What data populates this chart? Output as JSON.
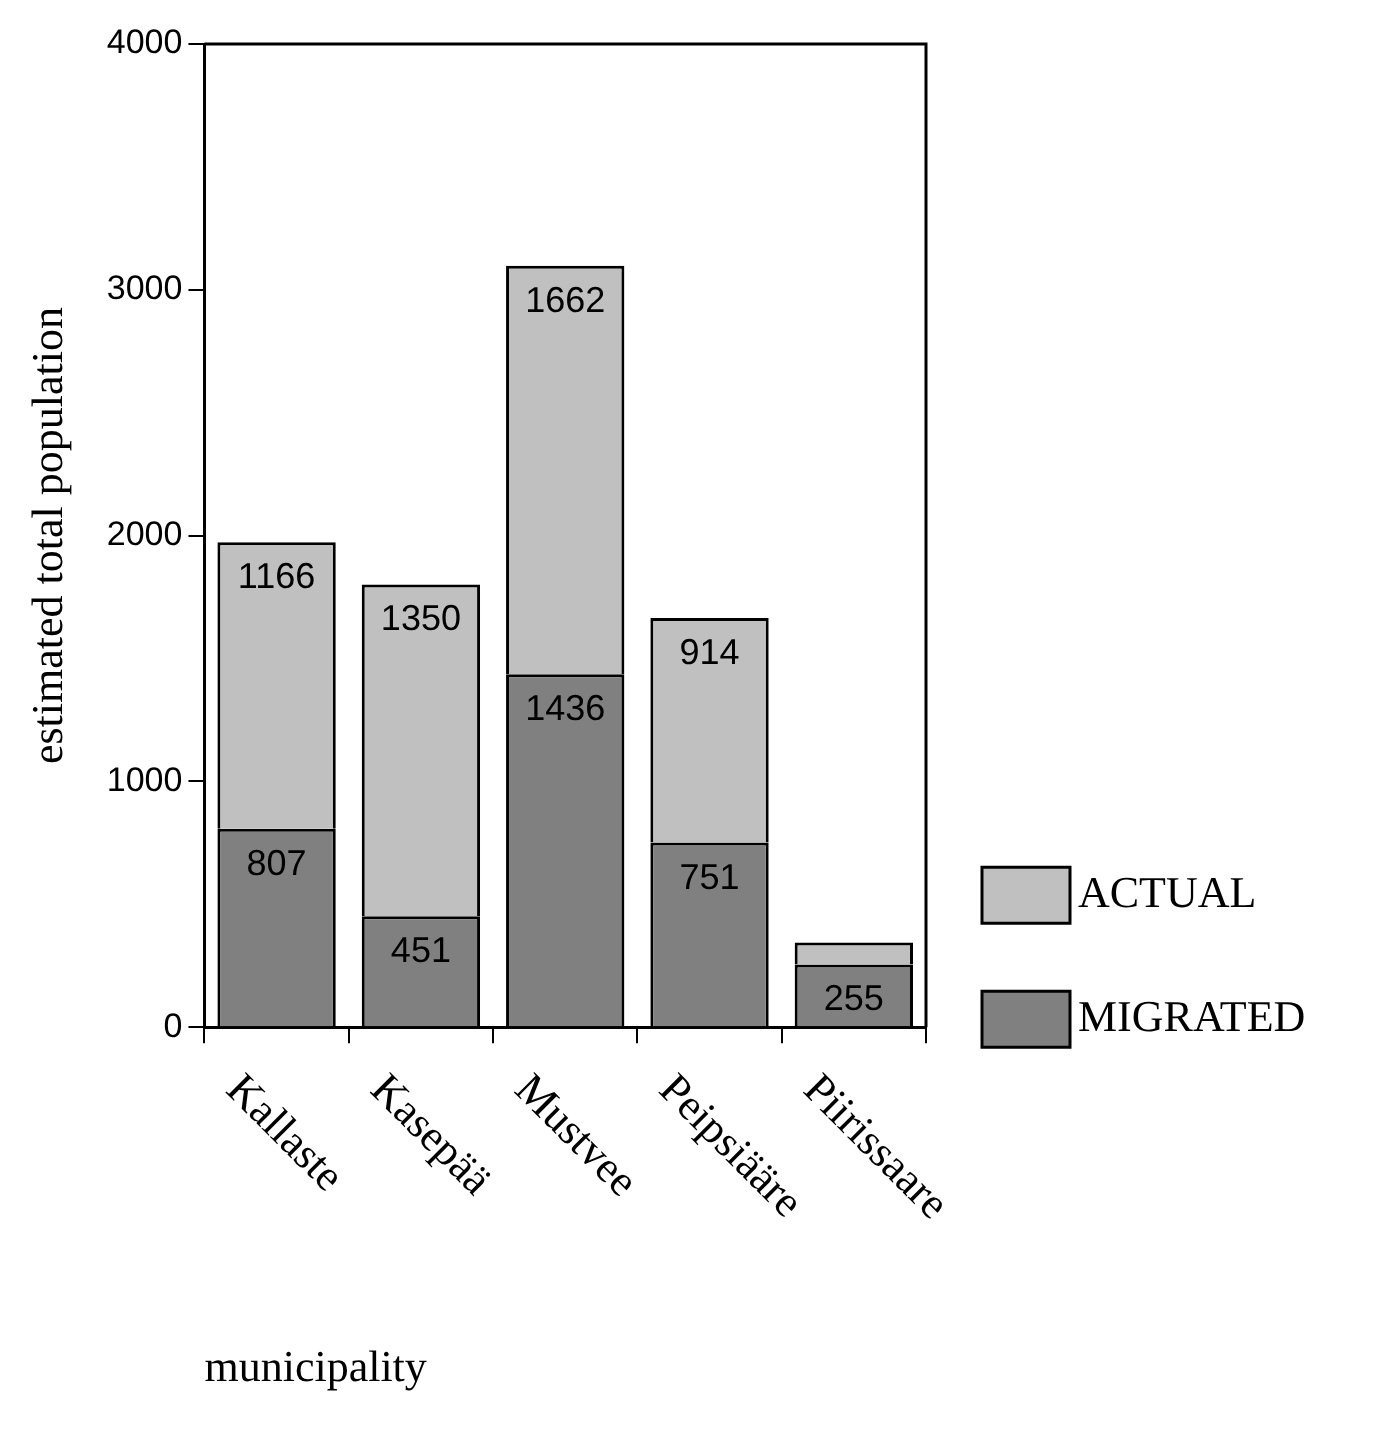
{
  "chart_data": {
    "type": "bar",
    "stacked": true,
    "categories": [
      "Kallaste",
      "Kasepää",
      "Mustvee",
      "Peipsiääre",
      "Piirissaare"
    ],
    "series": [
      {
        "name": "MIGRATED",
        "color": "#808080",
        "values": [
          807,
          451,
          1436,
          751,
          255
        ],
        "value_labels": [
          "807",
          "451",
          "1436",
          "751",
          "255"
        ]
      },
      {
        "name": "ACTUAL",
        "color": "#c0c0c0",
        "values": [
          1166,
          1350,
          1662,
          914,
          90
        ],
        "value_labels": [
          "1166",
          "1350",
          "1662",
          "914",
          null
        ]
      }
    ],
    "xlabel": "municipality",
    "ylabel": "estimated total population",
    "ylim": [
      0,
      4000
    ],
    "yticks": [
      0,
      1000,
      2000,
      3000,
      4000
    ],
    "grid": false,
    "legend": "bottom right"
  }
}
